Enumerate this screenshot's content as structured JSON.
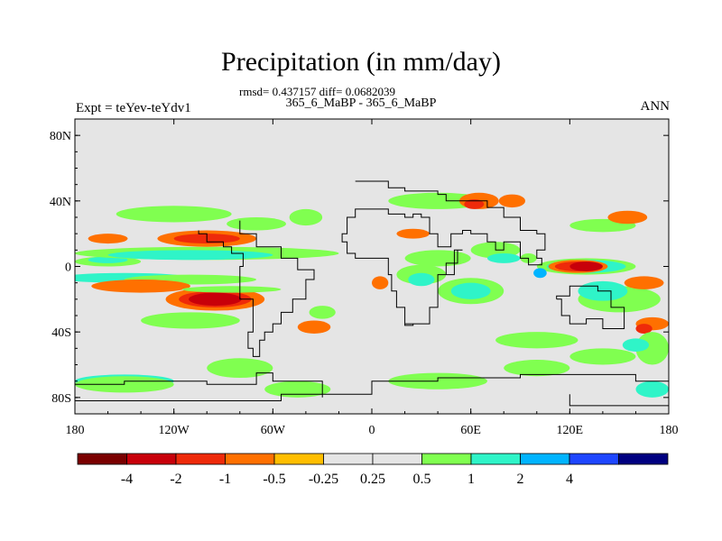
{
  "header": {
    "title": "Precipitation (in mm/day)",
    "stats": "rmsd= 0.437157 diff= 0.0682039",
    "subtitle": "365_6_MaBP - 365_6_MaBP",
    "left_label": "Expt = teYev-teYdv1",
    "right_label": "ANN"
  },
  "chart_data": {
    "type": "heatmap",
    "title": "Precipitation (in mm/day)",
    "xlabel": "",
    "ylabel": "",
    "xlim": [
      -180,
      180
    ],
    "ylim": [
      -90,
      90
    ],
    "x_ticks": [
      {
        "value": -180,
        "label": "180"
      },
      {
        "value": -120,
        "label": "120W"
      },
      {
        "value": -60,
        "label": "60W"
      },
      {
        "value": 0,
        "label": "0"
      },
      {
        "value": 60,
        "label": "60E"
      },
      {
        "value": 120,
        "label": "120E"
      },
      {
        "value": 180,
        "label": "180"
      }
    ],
    "y_ticks": [
      {
        "value": 80,
        "label": "80N"
      },
      {
        "value": 40,
        "label": "40N"
      },
      {
        "value": 0,
        "label": "0"
      },
      {
        "value": -40,
        "label": "40S"
      },
      {
        "value": -80,
        "label": "80S"
      }
    ],
    "background_color": "#e5e5e5",
    "colorbar": {
      "colors": [
        "#7a0000",
        "#c8000a",
        "#ee2a0a",
        "#ff7000",
        "#ffbe00",
        "#e5e5e5",
        "#e5e5e5",
        "#80ff50",
        "#2ff4c8",
        "#00b4ff",
        "#1e46ff",
        "#000080"
      ],
      "labels": [
        "-4",
        "-2",
        "-1",
        "-0.5",
        "-0.25",
        "0.25",
        "0.5",
        "1",
        "2",
        "4"
      ]
    },
    "anomaly_regions": [
      {
        "lon": -160,
        "lat": 17,
        "rlon": 12,
        "rlat": 3,
        "level": -0.5
      },
      {
        "lon": -160,
        "lat": 3,
        "rlon": 20,
        "rlat": 3,
        "level": 0.5
      },
      {
        "lon": -160,
        "lat": 4,
        "rlon": 12,
        "rlat": 2,
        "level": 1
      },
      {
        "lon": -100,
        "lat": 8,
        "rlon": 80,
        "rlat": 4,
        "level": 0.5
      },
      {
        "lon": -110,
        "lat": 7,
        "rlon": 50,
        "rlat": 3,
        "level": 1
      },
      {
        "lon": -150,
        "lat": -7,
        "rlon": 40,
        "rlat": 3,
        "level": 1
      },
      {
        "lon": -110,
        "lat": -8,
        "rlon": 40,
        "rlat": 3,
        "level": 0.5
      },
      {
        "lon": -100,
        "lat": 17,
        "rlon": 30,
        "rlat": 5,
        "level": -0.5
      },
      {
        "lon": -100,
        "lat": 17,
        "rlon": 20,
        "rlat": 3,
        "level": -1
      },
      {
        "lon": -70,
        "lat": 26,
        "rlon": 18,
        "rlat": 4,
        "level": 0.5
      },
      {
        "lon": -120,
        "lat": 32,
        "rlon": 35,
        "rlat": 5,
        "level": 0.25
      },
      {
        "lon": -140,
        "lat": -12,
        "rlon": 30,
        "rlat": 4,
        "level": -0.5
      },
      {
        "lon": -95,
        "lat": -20,
        "rlon": 30,
        "rlat": 7,
        "level": -0.5
      },
      {
        "lon": -95,
        "lat": -20,
        "rlon": 22,
        "rlat": 5,
        "level": -1
      },
      {
        "lon": -95,
        "lat": -20,
        "rlon": 16,
        "rlat": 4,
        "level": -2
      },
      {
        "lon": -85,
        "lat": -14,
        "rlon": 30,
        "rlat": 2,
        "level": 0.5
      },
      {
        "lon": -110,
        "lat": -33,
        "rlon": 30,
        "rlat": 5,
        "level": 0.25
      },
      {
        "lon": -35,
        "lat": -37,
        "rlon": 10,
        "rlat": 4,
        "level": -0.5
      },
      {
        "lon": -30,
        "lat": -28,
        "rlon": 8,
        "rlat": 4,
        "level": 0.5
      },
      {
        "lon": -40,
        "lat": 30,
        "rlon": 10,
        "rlat": 5,
        "level": 0.25
      },
      {
        "lon": 40,
        "lat": 40,
        "rlon": 30,
        "rlat": 5,
        "level": 0.25
      },
      {
        "lon": 65,
        "lat": 40,
        "rlon": 12,
        "rlat": 5,
        "level": -0.5
      },
      {
        "lon": 62,
        "lat": 38,
        "rlon": 6,
        "rlat": 3,
        "level": -1
      },
      {
        "lon": 85,
        "lat": 40,
        "rlon": 8,
        "rlat": 4,
        "level": -0.5
      },
      {
        "lon": 25,
        "lat": 20,
        "rlon": 10,
        "rlat": 3,
        "level": -0.5
      },
      {
        "lon": 40,
        "lat": 5,
        "rlon": 20,
        "rlat": 5,
        "level": 0.25
      },
      {
        "lon": 30,
        "lat": -5,
        "rlon": 15,
        "rlat": 6,
        "level": 0.5
      },
      {
        "lon": 30,
        "lat": -8,
        "rlon": 8,
        "rlat": 4,
        "level": 1
      },
      {
        "lon": 5,
        "lat": -10,
        "rlon": 5,
        "rlat": 4,
        "level": -0.5
      },
      {
        "lon": 60,
        "lat": -15,
        "rlon": 20,
        "rlat": 8,
        "level": 0.5
      },
      {
        "lon": 60,
        "lat": -15,
        "rlon": 12,
        "rlat": 5,
        "level": 1
      },
      {
        "lon": 75,
        "lat": 10,
        "rlon": 15,
        "rlat": 5,
        "level": 0.25
      },
      {
        "lon": 80,
        "lat": 5,
        "rlon": 10,
        "rlat": 3,
        "level": 1
      },
      {
        "lon": 130,
        "lat": 0,
        "rlon": 30,
        "rlat": 5,
        "level": 0.5
      },
      {
        "lon": 130,
        "lat": 0,
        "rlon": 24,
        "rlat": 4,
        "level": 1
      },
      {
        "lon": 125,
        "lat": 0,
        "rlon": 18,
        "rlat": 4,
        "level": -0.5
      },
      {
        "lon": 125,
        "lat": 0,
        "rlon": 14,
        "rlat": 3,
        "level": -1
      },
      {
        "lon": 130,
        "lat": 0,
        "rlon": 10,
        "rlat": 3,
        "level": -2
      },
      {
        "lon": 102,
        "lat": -4,
        "rlon": 4,
        "rlat": 3,
        "level": 2
      },
      {
        "lon": 95,
        "lat": 5,
        "rlon": 5,
        "rlat": 3,
        "level": 0.5
      },
      {
        "lon": 140,
        "lat": 25,
        "rlon": 20,
        "rlat": 4,
        "level": 0.25
      },
      {
        "lon": 155,
        "lat": 30,
        "rlon": 12,
        "rlat": 4,
        "level": -0.5
      },
      {
        "lon": 150,
        "lat": -20,
        "rlon": 25,
        "rlat": 8,
        "level": 0.5
      },
      {
        "lon": 140,
        "lat": -15,
        "rlon": 15,
        "rlat": 6,
        "level": 1
      },
      {
        "lon": 165,
        "lat": -10,
        "rlon": 12,
        "rlat": 4,
        "level": -0.5
      },
      {
        "lon": 170,
        "lat": -35,
        "rlon": 10,
        "rlat": 4,
        "level": -0.5
      },
      {
        "lon": 165,
        "lat": -38,
        "rlon": 5,
        "rlat": 3,
        "level": -1
      },
      {
        "lon": 170,
        "lat": -50,
        "rlon": 10,
        "rlat": 10,
        "level": 0.5
      },
      {
        "lon": 160,
        "lat": -48,
        "rlon": 8,
        "rlat": 4,
        "level": 1
      },
      {
        "lon": 140,
        "lat": -55,
        "rlon": 20,
        "rlat": 5,
        "level": 0.5
      },
      {
        "lon": 100,
        "lat": -45,
        "rlon": 25,
        "rlat": 5,
        "level": 0.25
      },
      {
        "lon": -150,
        "lat": -70,
        "rlon": 30,
        "rlat": 4,
        "level": 1
      },
      {
        "lon": -150,
        "lat": -72,
        "rlon": 30,
        "rlat": 5,
        "level": 0.5
      },
      {
        "lon": -80,
        "lat": -62,
        "rlon": 20,
        "rlat": 6,
        "level": 0.5
      },
      {
        "lon": -45,
        "lat": -75,
        "rlon": 20,
        "rlat": 5,
        "level": 0.5
      },
      {
        "lon": 40,
        "lat": -70,
        "rlon": 30,
        "rlat": 5,
        "level": 0.5
      },
      {
        "lon": 100,
        "lat": -62,
        "rlon": 20,
        "rlat": 5,
        "level": 0.5
      },
      {
        "lon": 170,
        "lat": -75,
        "rlon": 10,
        "rlat": 5,
        "level": 1
      }
    ],
    "land_outlines": [
      [
        [
          -10,
          52
        ],
        [
          10,
          52
        ],
        [
          10,
          48
        ],
        [
          20,
          48
        ],
        [
          20,
          46
        ],
        [
          35,
          46
        ],
        [
          40,
          44
        ],
        [
          45,
          40
        ],
        [
          60,
          40
        ],
        [
          70,
          36
        ],
        [
          80,
          30
        ],
        [
          90,
          22
        ],
        [
          100,
          20
        ],
        [
          105,
          10
        ],
        [
          100,
          5
        ],
        [
          103,
          1
        ],
        [
          95,
          5
        ],
        [
          90,
          15
        ],
        [
          80,
          10
        ],
        [
          75,
          15
        ],
        [
          70,
          20
        ],
        [
          60,
          22
        ],
        [
          55,
          20
        ],
        [
          48,
          12
        ],
        [
          43,
          12
        ],
        [
          40,
          20
        ],
        [
          35,
          30
        ],
        [
          30,
          32
        ],
        [
          25,
          30
        ],
        [
          20,
          32
        ],
        [
          10,
          35
        ],
        [
          0,
          35
        ],
        [
          -5,
          35
        ],
        [
          -10,
          30
        ],
        [
          -15,
          20
        ],
        [
          -18,
          15
        ],
        [
          -15,
          8
        ],
        [
          -10,
          5
        ],
        [
          0,
          5
        ],
        [
          10,
          5
        ],
        [
          10,
          -5
        ],
        [
          12,
          -15
        ],
        [
          15,
          -25
        ],
        [
          20,
          -35
        ],
        [
          30,
          -35
        ],
        [
          35,
          -25
        ],
        [
          40,
          -15
        ],
        [
          40,
          -5
        ],
        [
          50,
          10
        ],
        [
          55,
          10
        ],
        [
          52,
          2
        ],
        [
          45,
          -5
        ],
        [
          40,
          -25
        ],
        [
          35,
          -35
        ],
        [
          25,
          -36
        ],
        [
          20,
          -33
        ]
      ],
      [
        [
          -80,
          28
        ],
        [
          -80,
          20
        ],
        [
          -70,
          12
        ],
        [
          -55,
          5
        ],
        [
          -45,
          -2
        ],
        [
          -35,
          -8
        ],
        [
          -40,
          -20
        ],
        [
          -48,
          -28
        ],
        [
          -55,
          -35
        ],
        [
          -60,
          -40
        ],
        [
          -65,
          -45
        ],
        [
          -68,
          -55
        ],
        [
          -72,
          -50
        ],
        [
          -75,
          -40
        ],
        [
          -72,
          -20
        ],
        [
          -80,
          -5
        ],
        [
          -80,
          0
        ],
        [
          -78,
          8
        ],
        [
          -85,
          12
        ],
        [
          -90,
          15
        ],
        [
          -100,
          20
        ],
        [
          -105,
          22
        ]
      ],
      [
        [
          112,
          -20
        ],
        [
          115,
          -30
        ],
        [
          120,
          -35
        ],
        [
          130,
          -32
        ],
        [
          140,
          -38
        ],
        [
          148,
          -38
        ],
        [
          153,
          -25
        ],
        [
          145,
          -15
        ],
        [
          137,
          -12
        ],
        [
          130,
          -12
        ],
        [
          120,
          -18
        ],
        [
          112,
          -20
        ]
      ],
      [
        [
          -180,
          -72
        ],
        [
          -150,
          -70
        ],
        [
          -100,
          -72
        ],
        [
          -70,
          -65
        ],
        [
          -60,
          -70
        ],
        [
          -30,
          -78
        ],
        [
          0,
          -70
        ],
        [
          40,
          -68
        ],
        [
          90,
          -66
        ],
        [
          130,
          -66
        ],
        [
          160,
          -70
        ],
        [
          180,
          -75
        ]
      ],
      [
        [
          120,
          -78
        ],
        [
          120,
          -85
        ],
        [
          180,
          -85
        ]
      ],
      [
        [
          -180,
          -82
        ],
        [
          -60,
          -82
        ],
        [
          -55,
          -78
        ],
        [
          -30,
          -80
        ]
      ]
    ]
  }
}
